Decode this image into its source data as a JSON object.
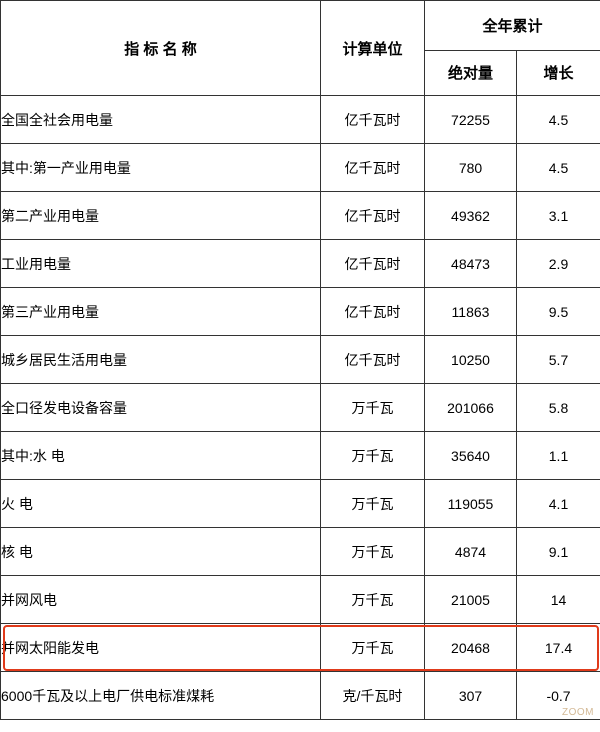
{
  "table": {
    "headers": {
      "indicator": "指 标 名 称",
      "unit": "计算单位",
      "annual": "全年累计",
      "absolute": "绝对量",
      "growth": "增长"
    },
    "col_widths": {
      "name": 320,
      "unit": 104,
      "abs": 92,
      "growth": 84
    },
    "rows": [
      {
        "name": "全国全社会用电量",
        "indent": 1,
        "unit": "亿千瓦时",
        "abs": "72255",
        "growth": "4.5",
        "highlight": false
      },
      {
        "name": "其中:第一产业用电量",
        "indent": 1,
        "unit": "亿千瓦时",
        "abs": "780",
        "growth": "4.5",
        "highlight": false
      },
      {
        "name": "第二产业用电量",
        "indent": 2,
        "unit": "亿千瓦时",
        "abs": "49362",
        "growth": "3.1",
        "highlight": false
      },
      {
        "name": "工业用电量",
        "indent": 2,
        "unit": "亿千瓦时",
        "abs": "48473",
        "growth": "2.9",
        "highlight": false
      },
      {
        "name": "第三产业用电量",
        "indent": 2,
        "unit": "亿千瓦时",
        "abs": "11863",
        "growth": "9.5",
        "highlight": false
      },
      {
        "name": "城乡居民生活用电量",
        "indent": 2,
        "unit": "亿千瓦时",
        "abs": "10250",
        "growth": "5.7",
        "highlight": false
      },
      {
        "name": "全口径发电设备容量",
        "indent": 1,
        "unit": "万千瓦",
        "abs": "201066",
        "growth": "5.8",
        "highlight": false
      },
      {
        "name": "其中:水 电",
        "indent": 2,
        "unit": "万千瓦",
        "abs": "35640",
        "growth": "1.1",
        "highlight": false
      },
      {
        "name": "火 电",
        "indent": 3,
        "unit": "万千瓦",
        "abs": "119055",
        "growth": "4.1",
        "highlight": false
      },
      {
        "name": "核 电",
        "indent": 3,
        "unit": "万千瓦",
        "abs": "4874",
        "growth": "9.1",
        "highlight": false
      },
      {
        "name": "并网风电",
        "indent": 3,
        "unit": "万千瓦",
        "abs": "21005",
        "growth": "14",
        "highlight": false
      },
      {
        "name": "并网太阳能发电",
        "indent": 3,
        "unit": "万千瓦",
        "abs": "20468",
        "growth": "17.4",
        "highlight": true
      },
      {
        "name": "6000千瓦及以上电厂供电标准煤耗",
        "indent": 1,
        "unit": "克/千瓦时",
        "abs": "307",
        "growth": "-0.7",
        "highlight": false
      }
    ],
    "highlight_color": "#e03a1a",
    "border_color": "#333333",
    "background_color": "#ffffff",
    "text_color": "#000000",
    "font_size_header": 15,
    "font_size_body": 14
  },
  "watermark": "ZOOM"
}
